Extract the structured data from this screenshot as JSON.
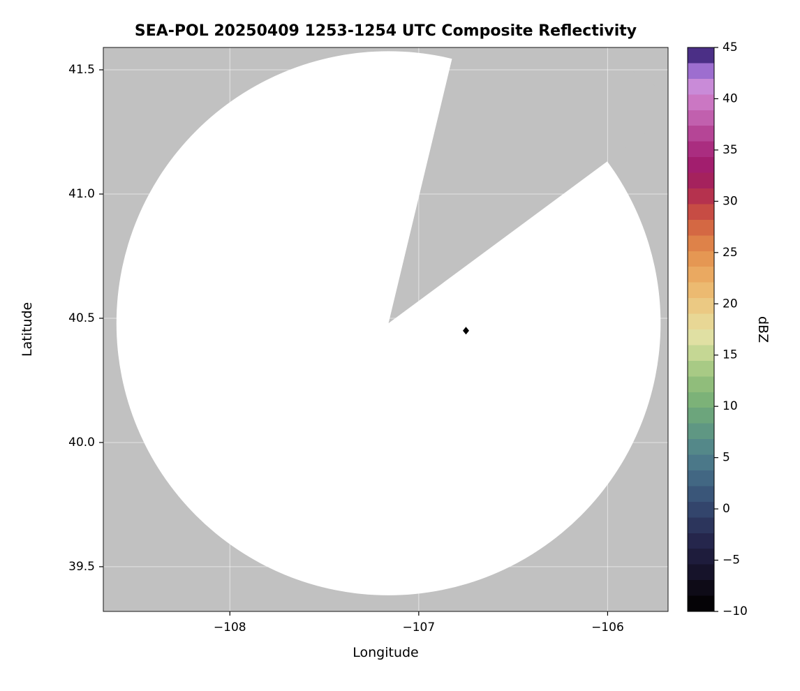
{
  "chart_data": {
    "type": "heatmap",
    "title": "SEA-POL 20250409 1253-1254 UTC Composite Reflectivity",
    "xlabel": "Longitude",
    "ylabel": "Latitude",
    "xlim": [
      -108.67,
      -105.68
    ],
    "ylim": [
      39.32,
      41.59
    ],
    "xticks": [
      -108,
      -107,
      -106
    ],
    "yticks": [
      39.5,
      40.0,
      40.5,
      41.0,
      41.5
    ],
    "grid": true,
    "grid_color": "#ffffff",
    "background_color": "#c1c1c1",
    "coverage": {
      "description": "White disk is the radar scan coverage area (no echoes above display threshold); gray is outside coverage",
      "center_lon": -107.16,
      "center_lat": 40.48,
      "radius_deg_lat": 1.095,
      "fill_color": "#ffffff",
      "blocked_sector_azimuth_deg": [
        13.5,
        53.5
      ]
    },
    "points": [
      {
        "lon": -106.75,
        "lat": 40.45,
        "marker": "diamond",
        "color": "#000000"
      }
    ],
    "colorbar": {
      "label": "dBZ",
      "min": -10,
      "max": 45,
      "ticks": [
        -10,
        -5,
        0,
        5,
        10,
        15,
        20,
        25,
        30,
        35,
        40,
        45
      ],
      "border_color": "#000000",
      "colors_bottom_to_top": [
        "#050306",
        "#0e0b17",
        "#16132a",
        "#1e1c3c",
        "#25264c",
        "#2c355c",
        "#33456c",
        "#3a5679",
        "#426783",
        "#4b7889",
        "#548889",
        "#5f9783",
        "#6ca57c",
        "#7cb278",
        "#90bd7b",
        "#a8ca85",
        "#c5d794",
        "#e0e0a3",
        "#e8d795",
        "#ebc983",
        "#ecba71",
        "#eaa961",
        "#e59753",
        "#de8249",
        "#d46843",
        "#c74c44",
        "#b5324e",
        "#a5225d",
        "#a21e6e",
        "#aa2d80",
        "#b54596",
        "#c160ae",
        "#cb77c3",
        "#c98bd8",
        "#9d6ecf",
        "#4b2f86"
      ]
    }
  }
}
